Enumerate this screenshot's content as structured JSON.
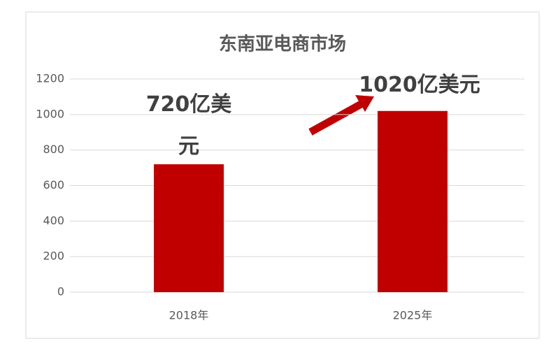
{
  "chart_data": {
    "type": "bar",
    "title": "东南亚电商市场",
    "categories": [
      "2018年",
      "2025年"
    ],
    "values": [
      720,
      1020
    ],
    "value_labels": [
      "720亿美元",
      "1020亿美元"
    ],
    "color": "#c00000",
    "ylim": [
      0,
      1200
    ],
    "yticks": [
      0,
      200,
      400,
      600,
      800,
      1000,
      1200
    ],
    "grid": true
  }
}
